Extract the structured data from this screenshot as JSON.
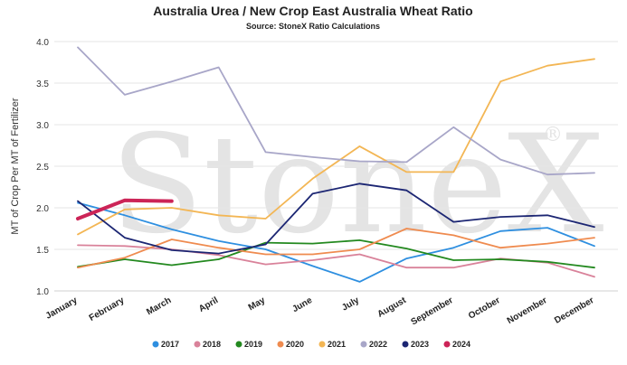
{
  "chart_data": {
    "type": "line",
    "title": "Australia Urea / New Crop East Australia Wheat Ratio",
    "subtitle": "Source: StoneX Ratio Calculations",
    "xlabel": "",
    "ylabel": "MT of Crop Per MT of Fertilizer",
    "ylim": [
      1.0,
      4.0
    ],
    "yticks": [
      "1.0",
      "1.5",
      "2.0",
      "2.5",
      "3.0",
      "3.5",
      "4.0"
    ],
    "categories": [
      "January",
      "February",
      "March",
      "April",
      "May",
      "June",
      "July",
      "August",
      "September",
      "October",
      "November",
      "December"
    ],
    "watermark": "StoneX",
    "watermark_mark": "®",
    "grid": true,
    "legend_position": "bottom",
    "series": [
      {
        "name": "2017",
        "color": "#2e8fe0",
        "values": [
          2.06,
          1.91,
          1.74,
          1.6,
          1.5,
          1.3,
          1.11,
          1.39,
          1.52,
          1.72,
          1.76,
          1.54
        ]
      },
      {
        "name": "2018",
        "color": "#d9829a",
        "values": [
          1.55,
          1.54,
          1.5,
          1.43,
          1.32,
          1.37,
          1.44,
          1.28,
          1.28,
          1.39,
          1.34,
          1.17
        ]
      },
      {
        "name": "2019",
        "color": "#23891f",
        "values": [
          1.29,
          1.38,
          1.31,
          1.38,
          1.58,
          1.57,
          1.61,
          1.51,
          1.37,
          1.38,
          1.35,
          1.28
        ]
      },
      {
        "name": "2020",
        "color": "#ef8b4f",
        "values": [
          1.28,
          1.4,
          1.62,
          1.52,
          1.44,
          1.44,
          1.5,
          1.75,
          1.67,
          1.52,
          1.57,
          1.64
        ]
      },
      {
        "name": "2021",
        "color": "#f3b654",
        "values": [
          1.68,
          1.98,
          2.0,
          1.91,
          1.87,
          2.35,
          2.74,
          2.43,
          2.43,
          3.52,
          3.71,
          3.79
        ]
      },
      {
        "name": "2022",
        "color": "#a8a6c8",
        "values": [
          3.93,
          3.36,
          3.52,
          3.69,
          2.67,
          2.61,
          2.56,
          2.55,
          2.97,
          2.58,
          2.4,
          2.42
        ]
      },
      {
        "name": "2023",
        "color": "#1c2673",
        "values": [
          2.08,
          1.64,
          1.49,
          1.45,
          1.56,
          2.17,
          2.29,
          2.21,
          1.83,
          1.89,
          1.91,
          1.77
        ]
      },
      {
        "name": "2024",
        "color": "#cc2457",
        "values": [
          1.87,
          2.09,
          2.08,
          null,
          null,
          null,
          null,
          null,
          null,
          null,
          null,
          null
        ]
      }
    ]
  }
}
